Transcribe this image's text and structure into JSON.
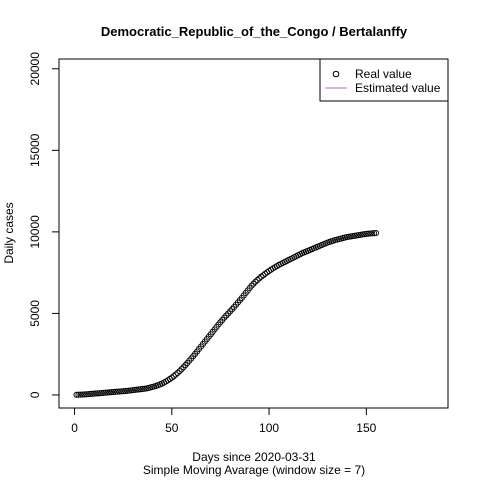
{
  "chart_data": {
    "type": "scatter",
    "title": "Democratic_Republic_of_the_Congo / Bertalanffy",
    "xlabel": "Days since 2020-03-31",
    "xlabel_sub": "Simple Moving Avarage (window size = 7)",
    "ylabel": "Daily cases",
    "xlim": [
      -8,
      192
    ],
    "ylim": [
      -800,
      20600
    ],
    "x_ticks": [
      0,
      50,
      100,
      150
    ],
    "y_ticks": [
      0,
      5000,
      10000,
      15000,
      20000
    ],
    "legend": {
      "position": "top-right",
      "entries": [
        {
          "label": "Real value",
          "symbol": "circle",
          "color": "#000000"
        },
        {
          "label": "Estimated value",
          "symbol": "line",
          "color": "#b36bb3"
        }
      ]
    },
    "series": [
      {
        "name": "Real value",
        "color": "#000000",
        "x": [
          1,
          2,
          3,
          4,
          5,
          6,
          7,
          8,
          9,
          10,
          11,
          12,
          13,
          14,
          15,
          16,
          17,
          18,
          19,
          20,
          21,
          22,
          23,
          24,
          25,
          26,
          27,
          28,
          29,
          30,
          31,
          32,
          33,
          34,
          35,
          36,
          37,
          38,
          39,
          40,
          41,
          42,
          43,
          44,
          45,
          46,
          47,
          48,
          49,
          50,
          51,
          52,
          53,
          54,
          55,
          56,
          57,
          58,
          59,
          60,
          61,
          62,
          63,
          64,
          65,
          66,
          67,
          68,
          69,
          70,
          71,
          72,
          73,
          74,
          75,
          76,
          77,
          78,
          79,
          80,
          81,
          82,
          83,
          84,
          85,
          86,
          87,
          88,
          89,
          90,
          91,
          92,
          93,
          94,
          95,
          96,
          97,
          98,
          99,
          100,
          101,
          102,
          103,
          104,
          105,
          106,
          107,
          108,
          109,
          110,
          111,
          112,
          113,
          114,
          115,
          116,
          117,
          118,
          119,
          120,
          121,
          122,
          123,
          124,
          125,
          126,
          127,
          128,
          129,
          130,
          131,
          132,
          133,
          134,
          135,
          136,
          137,
          138,
          139,
          140,
          141,
          142,
          143,
          144,
          145,
          146,
          147,
          148,
          149,
          150,
          151,
          152,
          153,
          154,
          155
        ],
        "y": [
          10,
          15,
          20,
          25,
          30,
          40,
          50,
          60,
          70,
          80,
          90,
          100,
          110,
          120,
          130,
          140,
          150,
          160,
          170,
          180,
          190,
          200,
          210,
          220,
          230,
          240,
          250,
          265,
          280,
          295,
          310,
          325,
          340,
          355,
          370,
          385,
          400,
          430,
          460,
          490,
          520,
          560,
          600,
          650,
          700,
          760,
          830,
          900,
          980,
          1060,
          1150,
          1250,
          1350,
          1460,
          1580,
          1700,
          1830,
          1960,
          2100,
          2240,
          2380,
          2520,
          2670,
          2820,
          2970,
          3120,
          3270,
          3420,
          3570,
          3720,
          3870,
          4020,
          4170,
          4320,
          4460,
          4600,
          4740,
          4870,
          5000,
          5130,
          5260,
          5390,
          5530,
          5670,
          5810,
          5950,
          6100,
          6250,
          6400,
          6550,
          6700,
          6820,
          6940,
          7050,
          7150,
          7250,
          7340,
          7430,
          7520,
          7600,
          7680,
          7760,
          7830,
          7900,
          7970,
          8030,
          8090,
          8150,
          8210,
          8270,
          8330,
          8390,
          8450,
          8510,
          8570,
          8630,
          8690,
          8740,
          8790,
          8840,
          8890,
          8940,
          8990,
          9040,
          9090,
          9140,
          9190,
          9240,
          9290,
          9340,
          9380,
          9420,
          9460,
          9500,
          9530,
          9560,
          9590,
          9620,
          9650,
          9680,
          9700,
          9720,
          9740,
          9760,
          9780,
          9800,
          9820,
          9840,
          9860,
          9875,
          9890,
          9900,
          9910,
          9920,
          9930
        ]
      }
    ]
  }
}
